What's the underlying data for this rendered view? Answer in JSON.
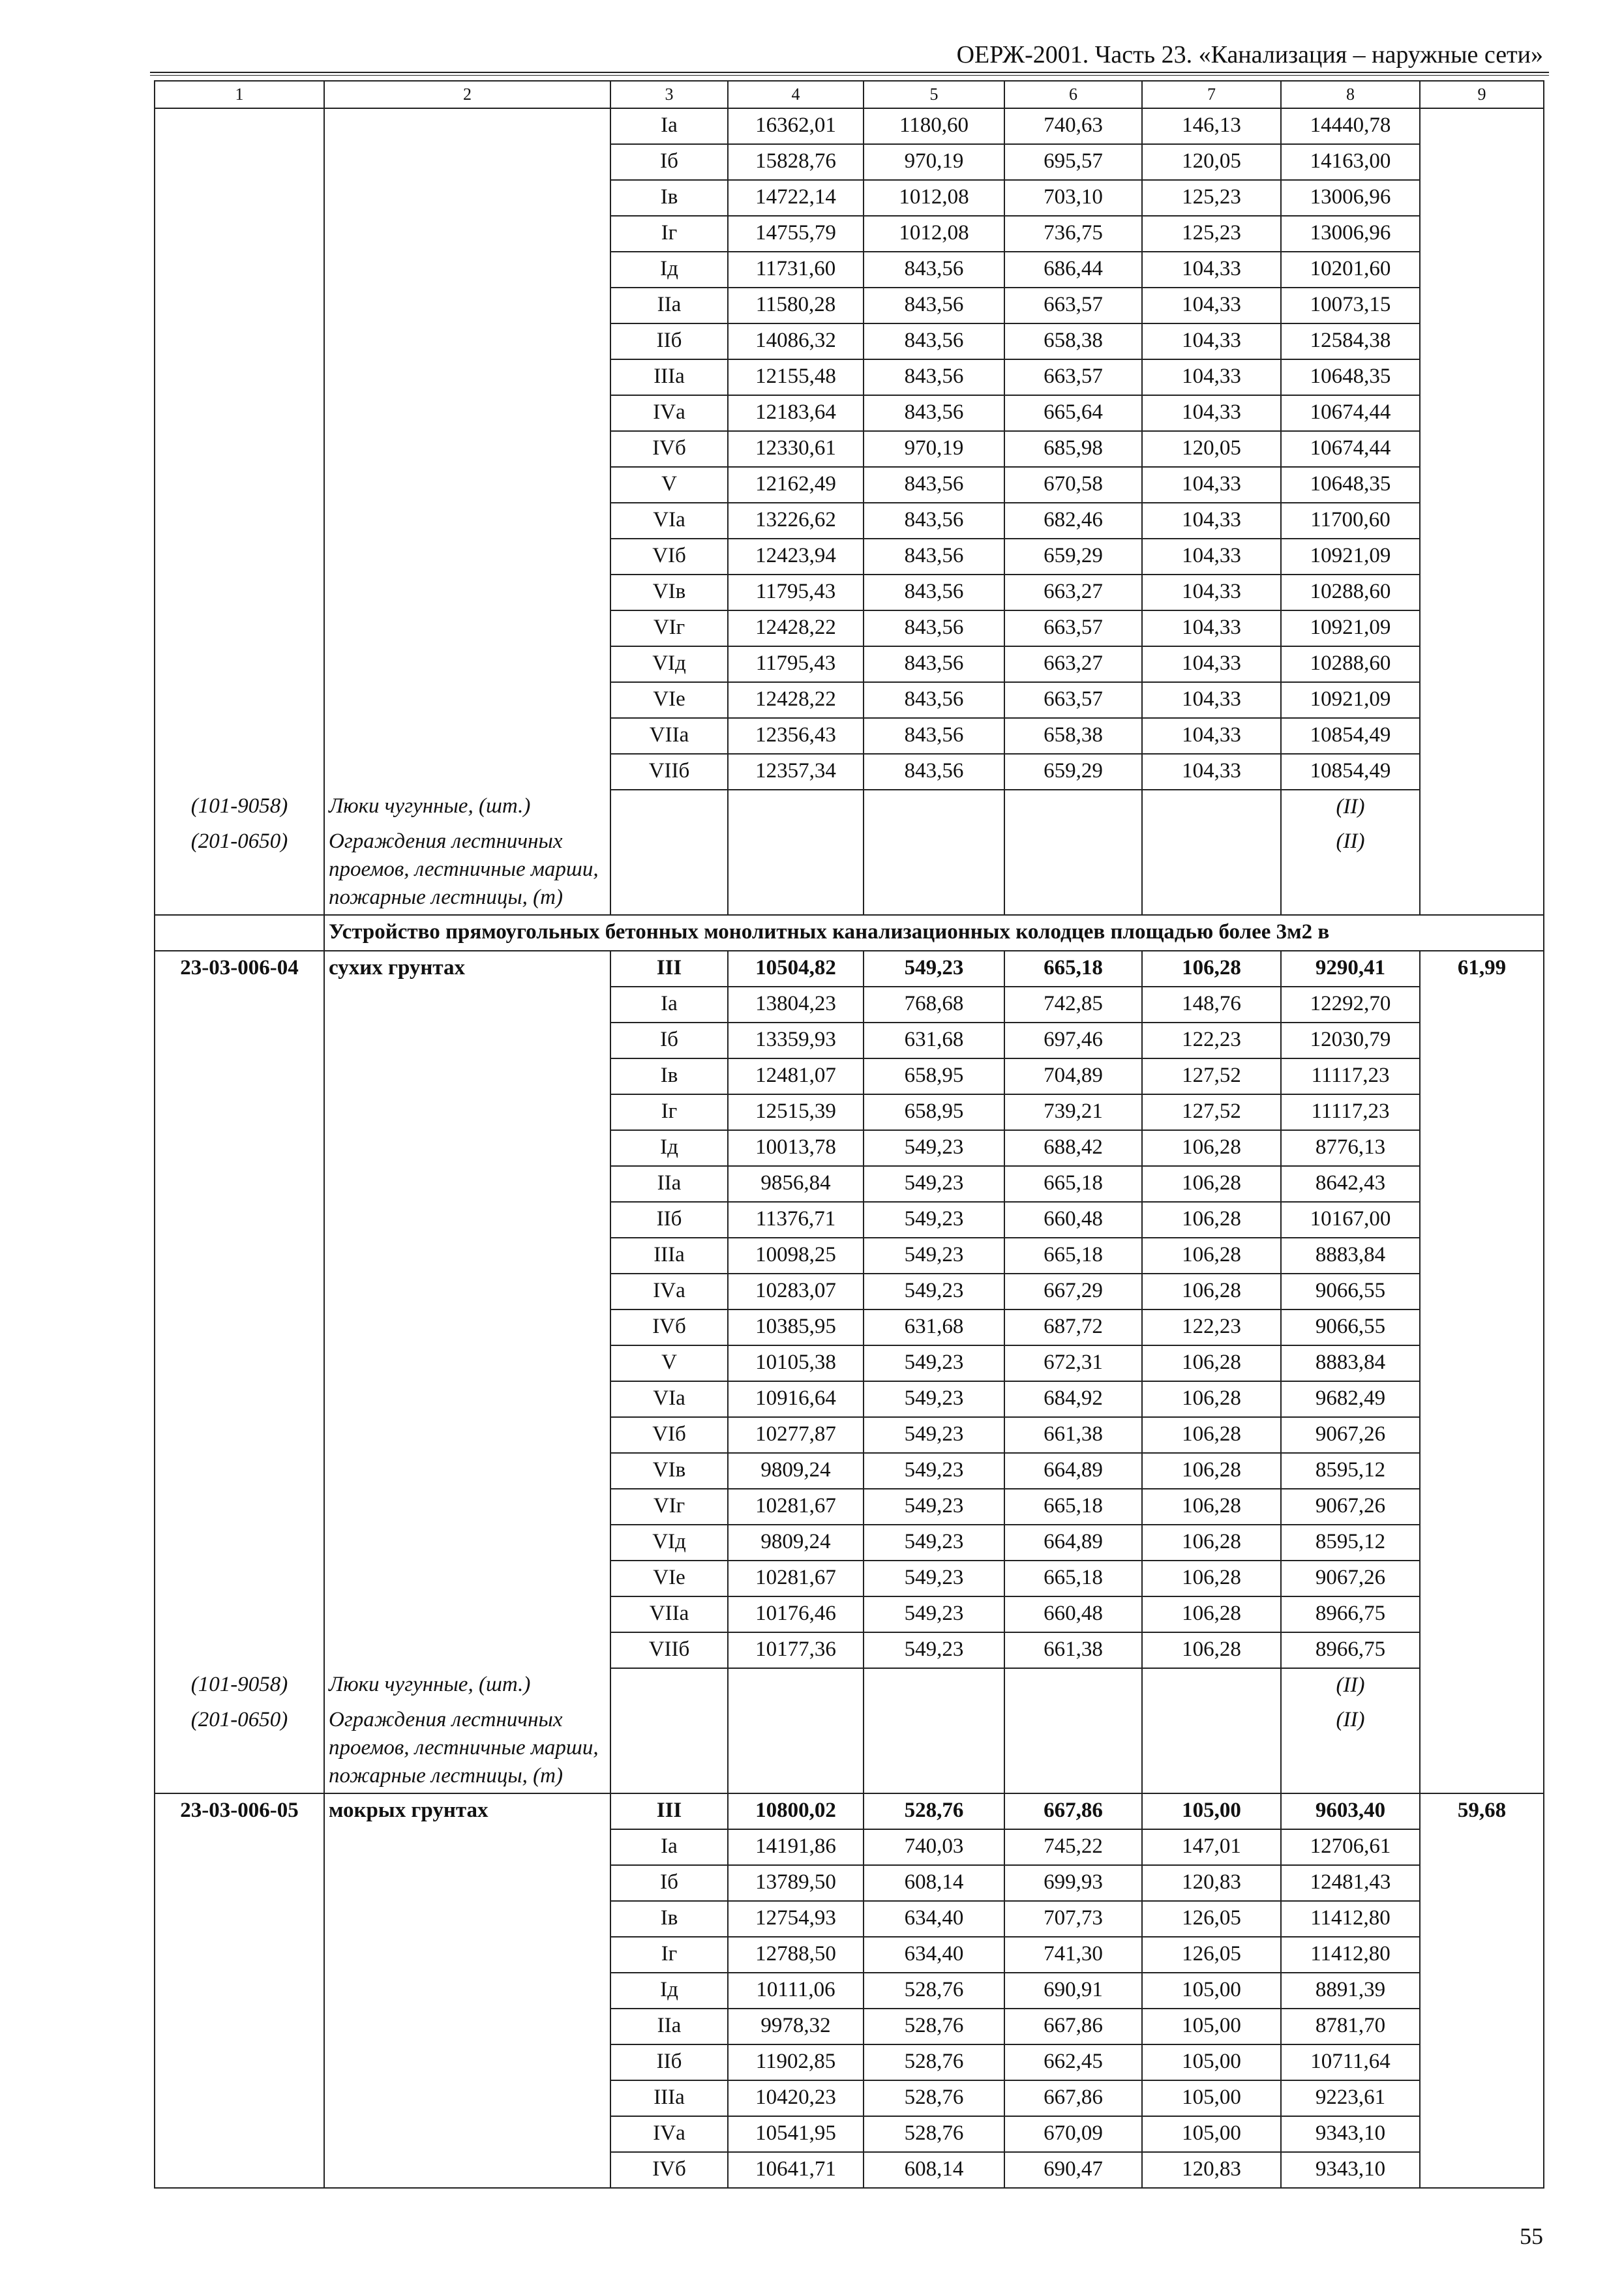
{
  "header": {
    "title": "ОЕРЖ-2001. Часть 23. «Канализация – наружные сети»"
  },
  "table": {
    "columns": [
      "1",
      "2",
      "3",
      "4",
      "5",
      "6",
      "7",
      "8",
      "9"
    ],
    "groups": [
      {
        "rows": [
          [
            "Iа",
            "16362,01",
            "1180,60",
            "740,63",
            "146,13",
            "14440,78"
          ],
          [
            "Iб",
            "15828,76",
            "970,19",
            "695,57",
            "120,05",
            "14163,00"
          ],
          [
            "Iв",
            "14722,14",
            "1012,08",
            "703,10",
            "125,23",
            "13006,96"
          ],
          [
            "Iг",
            "14755,79",
            "1012,08",
            "736,75",
            "125,23",
            "13006,96"
          ],
          [
            "Iд",
            "11731,60",
            "843,56",
            "686,44",
            "104,33",
            "10201,60"
          ],
          [
            "IIа",
            "11580,28",
            "843,56",
            "663,57",
            "104,33",
            "10073,15"
          ],
          [
            "IIб",
            "14086,32",
            "843,56",
            "658,38",
            "104,33",
            "12584,38"
          ],
          [
            "IIIа",
            "12155,48",
            "843,56",
            "663,57",
            "104,33",
            "10648,35"
          ],
          [
            "IVа",
            "12183,64",
            "843,56",
            "665,64",
            "104,33",
            "10674,44"
          ],
          [
            "IVб",
            "12330,61",
            "970,19",
            "685,98",
            "120,05",
            "10674,44"
          ],
          [
            "V",
            "12162,49",
            "843,56",
            "670,58",
            "104,33",
            "10648,35"
          ],
          [
            "VIа",
            "13226,62",
            "843,56",
            "682,46",
            "104,33",
            "11700,60"
          ],
          [
            "VIб",
            "12423,94",
            "843,56",
            "659,29",
            "104,33",
            "10921,09"
          ],
          [
            "VIв",
            "11795,43",
            "843,56",
            "663,27",
            "104,33",
            "10288,60"
          ],
          [
            "VIг",
            "12428,22",
            "843,56",
            "663,57",
            "104,33",
            "10921,09"
          ],
          [
            "VIд",
            "11795,43",
            "843,56",
            "663,27",
            "104,33",
            "10288,60"
          ],
          [
            "VIе",
            "12428,22",
            "843,56",
            "663,57",
            "104,33",
            "10921,09"
          ],
          [
            "VIIа",
            "12356,43",
            "843,56",
            "658,38",
            "104,33",
            "10854,49"
          ],
          [
            "VIIб",
            "12357,34",
            "843,56",
            "659,29",
            "104,33",
            "10854,49"
          ]
        ],
        "resources": [
          {
            "code": "(101-9058)",
            "name": "Люки чугунные, (шт.)",
            "value": "(II)"
          },
          {
            "code": "(201-0650)",
            "name": "Ограждения лестничных проемов, лестничные марши, пожарные лестницы, (т)",
            "value": "(II)"
          }
        ]
      },
      {
        "heading": "Устройство прямоугольных бетонных монолитных канализационных колодцев площадью более 3м2 в"
      },
      {
        "code": "23-03-006-04",
        "name": "сухих грунтах",
        "total": "61,99",
        "rows": [
          [
            "III",
            "10504,82",
            "549,23",
            "665,18",
            "106,28",
            "9290,41"
          ],
          [
            "Iа",
            "13804,23",
            "768,68",
            "742,85",
            "148,76",
            "12292,70"
          ],
          [
            "Iб",
            "13359,93",
            "631,68",
            "697,46",
            "122,23",
            "12030,79"
          ],
          [
            "Iв",
            "12481,07",
            "658,95",
            "704,89",
            "127,52",
            "11117,23"
          ],
          [
            "Iг",
            "12515,39",
            "658,95",
            "739,21",
            "127,52",
            "11117,23"
          ],
          [
            "Iд",
            "10013,78",
            "549,23",
            "688,42",
            "106,28",
            "8776,13"
          ],
          [
            "IIа",
            "9856,84",
            "549,23",
            "665,18",
            "106,28",
            "8642,43"
          ],
          [
            "IIб",
            "11376,71",
            "549,23",
            "660,48",
            "106,28",
            "10167,00"
          ],
          [
            "IIIа",
            "10098,25",
            "549,23",
            "665,18",
            "106,28",
            "8883,84"
          ],
          [
            "IVа",
            "10283,07",
            "549,23",
            "667,29",
            "106,28",
            "9066,55"
          ],
          [
            "IVб",
            "10385,95",
            "631,68",
            "687,72",
            "122,23",
            "9066,55"
          ],
          [
            "V",
            "10105,38",
            "549,23",
            "672,31",
            "106,28",
            "8883,84"
          ],
          [
            "VIа",
            "10916,64",
            "549,23",
            "684,92",
            "106,28",
            "9682,49"
          ],
          [
            "VIб",
            "10277,87",
            "549,23",
            "661,38",
            "106,28",
            "9067,26"
          ],
          [
            "VIв",
            "9809,24",
            "549,23",
            "664,89",
            "106,28",
            "8595,12"
          ],
          [
            "VIг",
            "10281,67",
            "549,23",
            "665,18",
            "106,28",
            "9067,26"
          ],
          [
            "VIд",
            "9809,24",
            "549,23",
            "664,89",
            "106,28",
            "8595,12"
          ],
          [
            "VIе",
            "10281,67",
            "549,23",
            "665,18",
            "106,28",
            "9067,26"
          ],
          [
            "VIIа",
            "10176,46",
            "549,23",
            "660,48",
            "106,28",
            "8966,75"
          ],
          [
            "VIIб",
            "10177,36",
            "549,23",
            "661,38",
            "106,28",
            "8966,75"
          ]
        ],
        "resources": [
          {
            "code": "(101-9058)",
            "name": "Люки чугунные, (шт.)",
            "value": "(II)"
          },
          {
            "code": "(201-0650)",
            "name": "Ограждения лестничных проемов, лестничные марши, пожарные лестницы, (т)",
            "value": "(II)"
          }
        ]
      },
      {
        "code": "23-03-006-05",
        "name": "мокрых грунтах",
        "total": "59,68",
        "rows": [
          [
            "III",
            "10800,02",
            "528,76",
            "667,86",
            "105,00",
            "9603,40"
          ],
          [
            "Iа",
            "14191,86",
            "740,03",
            "745,22",
            "147,01",
            "12706,61"
          ],
          [
            "Iб",
            "13789,50",
            "608,14",
            "699,93",
            "120,83",
            "12481,43"
          ],
          [
            "Iв",
            "12754,93",
            "634,40",
            "707,73",
            "126,05",
            "11412,80"
          ],
          [
            "Iг",
            "12788,50",
            "634,40",
            "741,30",
            "126,05",
            "11412,80"
          ],
          [
            "Iд",
            "10111,06",
            "528,76",
            "690,91",
            "105,00",
            "8891,39"
          ],
          [
            "IIа",
            "9978,32",
            "528,76",
            "667,86",
            "105,00",
            "8781,70"
          ],
          [
            "IIб",
            "11902,85",
            "528,76",
            "662,45",
            "105,00",
            "10711,64"
          ],
          [
            "IIIа",
            "10420,23",
            "528,76",
            "667,86",
            "105,00",
            "9223,61"
          ],
          [
            "IVа",
            "10541,95",
            "528,76",
            "670,09",
            "105,00",
            "9343,10"
          ],
          [
            "IVб",
            "10641,71",
            "608,14",
            "690,47",
            "120,83",
            "9343,10"
          ]
        ]
      }
    ]
  },
  "page_number": "55"
}
